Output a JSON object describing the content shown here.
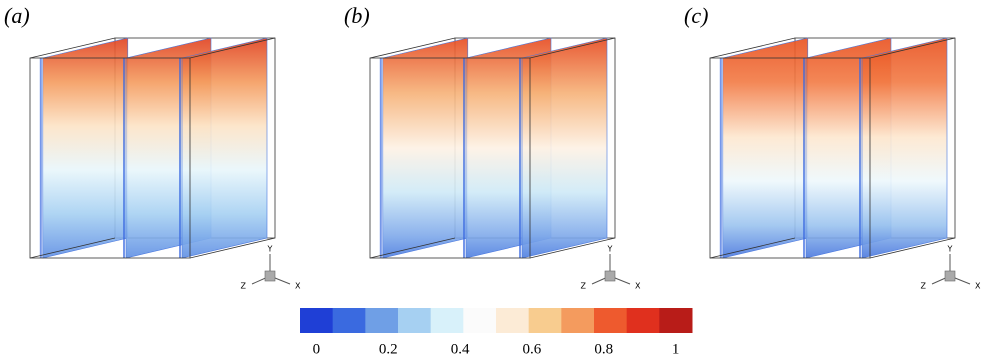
{
  "panels": [
    {
      "label": "(a)"
    },
    {
      "label": "(b)"
    },
    {
      "label": "(c)"
    }
  ],
  "axis_labels": {
    "y": "Y",
    "z": "Z",
    "x": "X"
  },
  "colorbar": {
    "colors": [
      "#1f3fd6",
      "#3a6ae0",
      "#6f9fe6",
      "#a6d0f2",
      "#d8f1fa",
      "#fbfbfb",
      "#fcebd6",
      "#f8cc8f",
      "#f49b5e",
      "#ee5a2e",
      "#e0301e",
      "#b81c18"
    ],
    "lim": [
      0,
      1
    ],
    "ticks": [
      0,
      0.2,
      0.4,
      0.6,
      0.8,
      1
    ]
  }
}
